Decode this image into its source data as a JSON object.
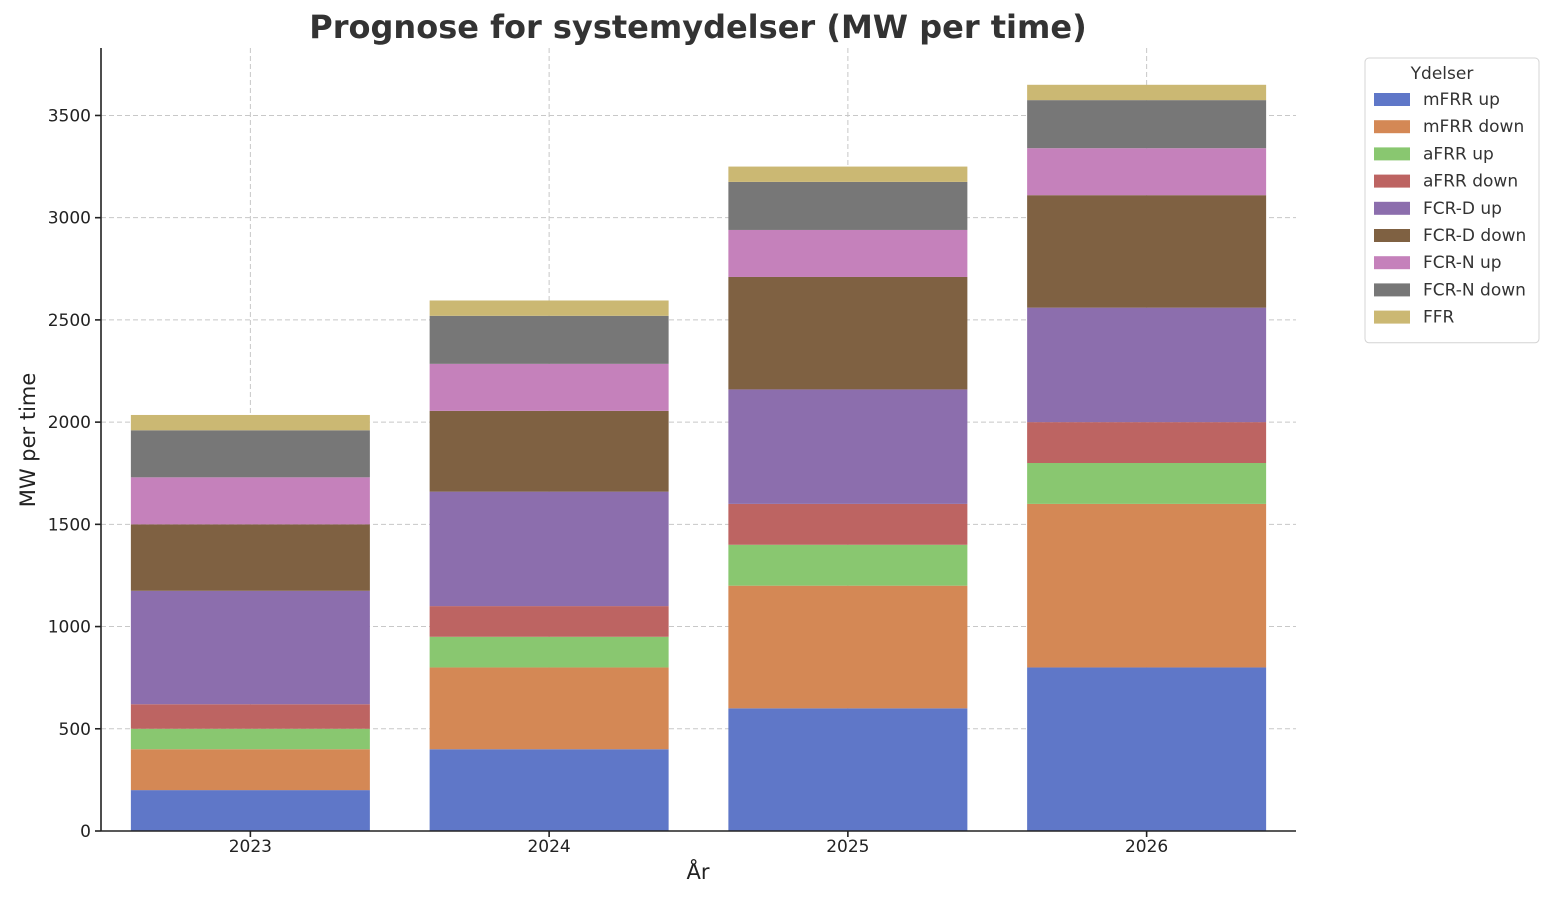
{
  "chart_data": {
    "type": "bar",
    "stacked": true,
    "title": "Prognose for systemydelser (MW per time)",
    "xlabel": "År",
    "ylabel": "MW per time",
    "categories": [
      "2023",
      "2024",
      "2025",
      "2026"
    ],
    "ylim": [
      0,
      3830
    ],
    "yticks": [
      0,
      500,
      1000,
      1500,
      2000,
      2500,
      3000,
      3500
    ],
    "grid": true,
    "legend": {
      "title": "Ydelser",
      "placement": "outside top-right"
    },
    "series": [
      {
        "name": "mFRR up",
        "color": "#5f77c8",
        "values": [
          200,
          400,
          600,
          800
        ]
      },
      {
        "name": "mFRR down",
        "color": "#d48855",
        "values": [
          200,
          400,
          600,
          800
        ]
      },
      {
        "name": "aFRR up",
        "color": "#89c770",
        "values": [
          100,
          150,
          200,
          200
        ]
      },
      {
        "name": "aFRR down",
        "color": "#bd6462",
        "values": [
          120,
          150,
          200,
          200
        ]
      },
      {
        "name": "FCR-D up",
        "color": "#8c6ead",
        "values": [
          555,
          560,
          560,
          560
        ]
      },
      {
        "name": "FCR-D down",
        "color": "#7f6142",
        "values": [
          325,
          395,
          550,
          550
        ]
      },
      {
        "name": "FCR-N up",
        "color": "#c581bb",
        "values": [
          230,
          230,
          230,
          230
        ]
      },
      {
        "name": "FCR-N down",
        "color": "#777777",
        "values": [
          230,
          235,
          235,
          235
        ]
      },
      {
        "name": "FFR",
        "color": "#cbb873",
        "values": [
          75,
          75,
          75,
          75
        ]
      }
    ]
  }
}
